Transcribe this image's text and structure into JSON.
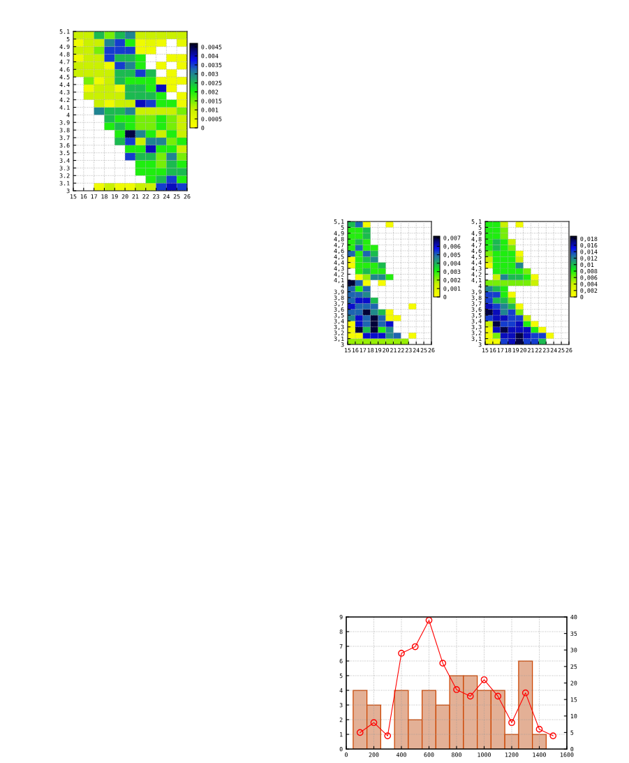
{
  "chart_data": [
    {
      "type": "heatmap",
      "xlim": [
        15,
        26
      ],
      "xticks": [
        15,
        16,
        17,
        18,
        19,
        20,
        21,
        22,
        23,
        24,
        25,
        26
      ],
      "ylim": [
        3,
        5.1
      ],
      "yticks": [
        3,
        3.1,
        3.2,
        3.3,
        3.4,
        3.5,
        3.6,
        3.7,
        3.8,
        3.9,
        4,
        4.1,
        4.2,
        4.3,
        4.4,
        4.5,
        4.6,
        4.7,
        4.8,
        4.9,
        5,
        5.1
      ],
      "grid": true,
      "clim": [
        0,
        0.0047
      ],
      "cticks": [
        0,
        0.0005,
        0.001,
        0.0015,
        0.002,
        0.0025,
        0.003,
        0.0035,
        0.004,
        0.0045
      ],
      "cells": [
        [
          0.001,
          0.001,
          0.0025,
          0.0015,
          0.0025,
          0.003,
          0.001,
          0.001,
          0.001,
          0.001,
          0.001
        ],
        [
          0.0003,
          0.001,
          0.001,
          0.003,
          0.0035,
          0.002,
          0.0003,
          0.0005,
          0.0003,
          null,
          0.0005
        ],
        [
          0.001,
          0.001,
          0.0015,
          0.0035,
          0.0035,
          0.0035,
          0.0003,
          0.0003,
          null,
          null,
          null
        ],
        [
          0.0003,
          0.001,
          0.001,
          0.0035,
          0.0025,
          0.0025,
          0.002,
          null,
          null,
          0.0003,
          0.0003
        ],
        [
          0.001,
          0.001,
          0.001,
          0.0003,
          0.0035,
          0.003,
          0.002,
          null,
          0.0003,
          null,
          0.0003
        ],
        [
          0.001,
          0.001,
          0.001,
          0.001,
          0.0025,
          0.0025,
          0.0035,
          0.0025,
          null,
          0.0003,
          null
        ],
        [
          null,
          0.0015,
          0.0003,
          0.001,
          0.0025,
          0.002,
          0.002,
          0.002,
          0.0003,
          0.0003,
          0.0003
        ],
        [
          null,
          0.0003,
          0.001,
          0.001,
          0.0003,
          0.0025,
          0.0025,
          0.002,
          0.004,
          0.0003,
          null
        ],
        [
          null,
          0.001,
          0.001,
          0.001,
          0.001,
          0.0025,
          0.0025,
          0.0025,
          0.002,
          null,
          0.0003
        ],
        [
          null,
          null,
          0.001,
          0.0003,
          0.001,
          0.001,
          0.004,
          0.0035,
          0.002,
          0.002,
          0.0003
        ],
        [
          null,
          null,
          0.003,
          0.0025,
          0.0025,
          0.003,
          0.001,
          0.001,
          0.001,
          0.001,
          0.0015
        ],
        [
          null,
          null,
          null,
          0.0025,
          0.002,
          0.002,
          0.0015,
          0.0015,
          0.002,
          0.0015,
          0.001
        ],
        [
          null,
          null,
          null,
          0.002,
          0.0025,
          0.002,
          0.0015,
          0.0015,
          0.002,
          0.0015,
          0.001
        ],
        [
          null,
          null,
          null,
          null,
          0.002,
          0.0045,
          0.003,
          0.002,
          0.001,
          0.002,
          0.001
        ],
        [
          null,
          null,
          null,
          null,
          0.0025,
          0.0035,
          0.001,
          0.003,
          0.003,
          0.0015,
          0.002
        ],
        [
          null,
          null,
          null,
          null,
          null,
          0.002,
          0.002,
          0.004,
          0.002,
          0.002,
          0.001
        ],
        [
          null,
          null,
          null,
          null,
          null,
          0.0035,
          0.0025,
          0.0025,
          0.0015,
          0.003,
          0.0015
        ],
        [
          null,
          null,
          null,
          null,
          null,
          null,
          0.002,
          0.002,
          0.0015,
          0.0025,
          0.002
        ],
        [
          null,
          null,
          null,
          null,
          null,
          null,
          0.002,
          0.002,
          0.002,
          0.0025,
          0.0025
        ],
        [
          null,
          null,
          null,
          null,
          null,
          null,
          null,
          0.002,
          0.0025,
          0.0035,
          0.002
        ],
        [
          null,
          null,
          0.0003,
          0.001,
          0.0003,
          0.0003,
          0.001,
          0.001,
          0.0035,
          0.004,
          0.0035
        ]
      ]
    },
    {
      "type": "heatmap",
      "xlim": [
        15,
        26
      ],
      "xticks": [
        15,
        16,
        17,
        18,
        19,
        20,
        21,
        22,
        23,
        24,
        25,
        26
      ],
      "ylim": [
        3,
        5.1
      ],
      "yticks": [
        3,
        {
          "value": 3.1,
          "label": "3,1"
        },
        {
          "value": 3.2,
          "label": "3,2"
        },
        {
          "value": 3.3,
          "label": "3,3"
        },
        {
          "value": 3.4,
          "label": "3,4"
        },
        {
          "value": 3.5,
          "label": "3,5"
        },
        {
          "value": 3.6,
          "label": "3,6"
        },
        {
          "value": 3.7,
          "label": "3,7"
        },
        {
          "value": 3.8,
          "label": "3,8"
        },
        {
          "value": 3.9,
          "label": "3,9"
        },
        4,
        {
          "value": 4.1,
          "label": "4,1"
        },
        {
          "value": 4.2,
          "label": "4,2"
        },
        {
          "value": 4.3,
          "label": "4,3"
        },
        {
          "value": 4.4,
          "label": "4,4"
        },
        {
          "value": 4.5,
          "label": "4,5"
        },
        {
          "value": 4.6,
          "label": "4,6"
        },
        {
          "value": 4.7,
          "label": "4,7"
        },
        {
          "value": 4.8,
          "label": "4,8"
        },
        {
          "value": 4.9,
          "label": "4,9"
        },
        5,
        {
          "value": 5.1,
          "label": "5,1"
        }
      ],
      "grid": true,
      "clim": [
        0,
        0.0072
      ],
      "cticks": [
        0,
        {
          "value": 0.001,
          "label": "0,001"
        },
        {
          "value": 0.002,
          "label": "0,002"
        },
        {
          "value": 0.003,
          "label": "0,003"
        },
        {
          "value": 0.004,
          "label": "0,004"
        },
        {
          "value": 0.005,
          "label": "0,005"
        },
        {
          "value": 0.006,
          "label": "0,006"
        },
        {
          "value": 0.007,
          "label": "0,007"
        }
      ],
      "cells": [
        [
          0.0038,
          0.005,
          0.0003,
          null,
          null,
          0.0003,
          null,
          null,
          null,
          null,
          null
        ],
        [
          0.003,
          0.003,
          0.0038,
          null,
          null,
          null,
          null,
          null,
          null,
          null,
          null
        ],
        [
          0.003,
          0.003,
          0.0038,
          null,
          null,
          null,
          null,
          null,
          null,
          null,
          null
        ],
        [
          0.003,
          0.0038,
          0.003,
          null,
          null,
          null,
          null,
          null,
          null,
          null,
          null
        ],
        [
          0.003,
          0.005,
          0.003,
          0.003,
          null,
          null,
          null,
          null,
          null,
          null,
          null
        ],
        [
          0.005,
          0.003,
          0.005,
          0.0038,
          null,
          null,
          null,
          null,
          null,
          null,
          null
        ],
        [
          0.0003,
          0.003,
          0.0038,
          0.0045,
          null,
          null,
          null,
          null,
          null,
          null,
          null
        ],
        [
          0.0003,
          0.003,
          0.003,
          0.003,
          0.0038,
          null,
          null,
          null,
          null,
          null,
          null
        ],
        [
          null,
          0.003,
          0.0038,
          0.003,
          0.003,
          null,
          null,
          null,
          null,
          null,
          null
        ],
        [
          null,
          0.0003,
          0.002,
          0.0045,
          0.0045,
          0.003,
          null,
          null,
          null,
          null,
          null
        ],
        [
          0.007,
          0.005,
          0.0003,
          null,
          0.0003,
          null,
          null,
          null,
          null,
          null,
          null
        ],
        [
          0.005,
          0.003,
          0.005,
          null,
          null,
          null,
          null,
          null,
          null,
          null,
          null
        ],
        [
          0.005,
          0.005,
          0.0045,
          null,
          null,
          null,
          null,
          null,
          null,
          null,
          null
        ],
        [
          0.005,
          0.006,
          0.006,
          0.0038,
          null,
          null,
          null,
          null,
          null,
          null,
          null
        ],
        [
          0.006,
          0.005,
          0.005,
          0.005,
          null,
          null,
          null,
          null,
          0.0003,
          null,
          null
        ],
        [
          0.005,
          0.005,
          0.007,
          0.0045,
          0.0038,
          0.0003,
          null,
          null,
          null,
          null,
          null
        ],
        [
          0.0045,
          0.006,
          0.005,
          0.007,
          0.005,
          0.0003,
          0.0003,
          null,
          null,
          null,
          null
        ],
        [
          0.0003,
          0.006,
          0.005,
          0.007,
          0.005,
          0.006,
          null,
          null,
          null,
          null,
          null
        ],
        [
          0.0003,
          0.007,
          0.0038,
          0.007,
          0.003,
          0.0045,
          null,
          null,
          null,
          null,
          null
        ],
        [
          0.0003,
          0.0003,
          0.006,
          0.006,
          0.006,
          0.0045,
          0.005,
          null,
          0.0003,
          null,
          null
        ],
        [
          0.002,
          0.002,
          0.002,
          0.002,
          0.002,
          0.002,
          0.002,
          0.002,
          null,
          null,
          null
        ]
      ]
    },
    {
      "type": "heatmap",
      "xlim": [
        15,
        26
      ],
      "xticks": [
        15,
        16,
        17,
        18,
        19,
        20,
        21,
        22,
        23,
        24,
        25,
        26
      ],
      "ylim": [
        3,
        5.1
      ],
      "yticks": [
        3,
        {
          "value": 3.1,
          "label": "3,1"
        },
        {
          "value": 3.2,
          "label": "3,2"
        },
        {
          "value": 3.3,
          "label": "3,3"
        },
        {
          "value": 3.4,
          "label": "3,4"
        },
        {
          "value": 3.5,
          "label": "3,5"
        },
        {
          "value": 3.6,
          "label": "3,6"
        },
        {
          "value": 3.7,
          "label": "3,7"
        },
        {
          "value": 3.8,
          "label": "3,8"
        },
        {
          "value": 3.9,
          "label": "3,9"
        },
        4,
        {
          "value": 4.1,
          "label": "4,1"
        },
        {
          "value": 4.2,
          "label": "4,2"
        },
        {
          "value": 4.3,
          "label": "4,3"
        },
        {
          "value": 4.4,
          "label": "4,4"
        },
        {
          "value": 4.5,
          "label": "4,5"
        },
        {
          "value": 4.6,
          "label": "4,6"
        },
        {
          "value": 4.7,
          "label": "4,7"
        },
        {
          "value": 4.8,
          "label": "4,8"
        },
        {
          "value": 4.9,
          "label": "4,9"
        },
        5,
        {
          "value": 5.1,
          "label": "5,1"
        }
      ],
      "grid": true,
      "clim": [
        0,
        0.0188
      ],
      "cticks": [
        0,
        {
          "value": 0.002,
          "label": "0,002"
        },
        {
          "value": 0.004,
          "label": "0,004"
        },
        {
          "value": 0.006,
          "label": "0,006"
        },
        {
          "value": 0.008,
          "label": "0,008"
        },
        {
          "value": 0.01,
          "label": "0,01"
        },
        {
          "value": 0.012,
          "label": "0,012"
        },
        {
          "value": 0.014,
          "label": "0,014"
        },
        {
          "value": 0.016,
          "label": "0,016"
        },
        {
          "value": 0.018,
          "label": "0,018"
        }
      ],
      "cells": [
        [
          0.008,
          0.008,
          0.004,
          null,
          0.001,
          null,
          null,
          null,
          null,
          null,
          null
        ],
        [
          0.008,
          0.008,
          0.006,
          null,
          null,
          null,
          null,
          null,
          null,
          null,
          null
        ],
        [
          0.008,
          0.008,
          0.006,
          null,
          null,
          null,
          null,
          null,
          null,
          null,
          null
        ],
        [
          0.008,
          0.01,
          0.008,
          0.004,
          null,
          null,
          null,
          null,
          null,
          null,
          null
        ],
        [
          0.008,
          0.01,
          0.008,
          0.006,
          null,
          null,
          null,
          null,
          null,
          null,
          null
        ],
        [
          0.006,
          0.008,
          0.008,
          0.008,
          0.001,
          null,
          null,
          null,
          null,
          null,
          null
        ],
        [
          0.004,
          0.008,
          0.008,
          0.008,
          0.004,
          null,
          null,
          null,
          null,
          null,
          null
        ],
        [
          0.001,
          0.008,
          0.008,
          0.008,
          0.012,
          null,
          null,
          null,
          null,
          null,
          null
        ],
        [
          null,
          0.008,
          0.008,
          0.008,
          0.008,
          0.006,
          null,
          null,
          null,
          null,
          null
        ],
        [
          null,
          0.004,
          0.012,
          0.01,
          0.01,
          0.008,
          0.001,
          null,
          null,
          null,
          null
        ],
        [
          0.006,
          0.006,
          0.006,
          0.006,
          0.006,
          0.006,
          0.004,
          null,
          null,
          null,
          null
        ],
        [
          0.012,
          0.01,
          0.008,
          null,
          null,
          null,
          null,
          null,
          null,
          null,
          null
        ],
        [
          0.014,
          0.014,
          0.008,
          0.001,
          null,
          null,
          null,
          null,
          null,
          null,
          null
        ],
        [
          0.014,
          0.01,
          0.01,
          0.006,
          null,
          null,
          null,
          null,
          null,
          null,
          null
        ],
        [
          0.016,
          0.014,
          0.012,
          0.01,
          0.001,
          null,
          null,
          null,
          null,
          null,
          null
        ],
        [
          0.018,
          0.016,
          0.012,
          0.014,
          0.006,
          null,
          null,
          null,
          null,
          null,
          null
        ],
        [
          0.014,
          0.016,
          0.016,
          0.014,
          0.014,
          0.004,
          null,
          null,
          null,
          null,
          null
        ],
        [
          0.004,
          0.018,
          0.014,
          0.014,
          0.016,
          0.008,
          0.001,
          null,
          null,
          null,
          null
        ],
        [
          0.001,
          0.016,
          0.018,
          0.016,
          0.016,
          0.016,
          0.008,
          0.001,
          null,
          null,
          null
        ],
        [
          0.001,
          0.006,
          0.016,
          0.016,
          0.018,
          0.016,
          0.014,
          0.014,
          0.001,
          null,
          null
        ],
        [
          0.001,
          0.001,
          0.014,
          0.016,
          0.018,
          0.014,
          0.014,
          0.01,
          null,
          null,
          null
        ]
      ]
    },
    {
      "type": "histogram",
      "bins": [
        50,
        150,
        250,
        350,
        450,
        550,
        650,
        750,
        850,
        950,
        1050,
        1150,
        1250,
        1350,
        1450
      ],
      "values": [
        4,
        3,
        0,
        4,
        2,
        4,
        3,
        5,
        5,
        4,
        4,
        1,
        6,
        1
      ],
      "color": "#e3b096",
      "xlim": [
        0,
        1600
      ],
      "xticks": [
        0,
        200,
        400,
        600,
        800,
        1000,
        1200,
        1400,
        1600
      ],
      "ylim": [
        0,
        9
      ],
      "yticks": [
        0,
        1,
        2,
        3,
        4,
        5,
        6,
        7,
        8,
        9
      ],
      "y2lim": [
        0,
        40
      ],
      "y2ticks": [
        0,
        5,
        10,
        15,
        20,
        25,
        30,
        35,
        40
      ],
      "grid": true,
      "series": [
        {
          "type": "line",
          "axis": "y2",
          "color": "#ff0000",
          "marker": "circle",
          "line_style": "solid",
          "x": [
            100,
            200,
            300,
            400,
            500,
            600,
            700,
            800,
            900,
            1000,
            1100,
            1200,
            1300,
            1400,
            1500
          ],
          "values": [
            5,
            8,
            4,
            29,
            31,
            39,
            26,
            18,
            16,
            21,
            16,
            8,
            17,
            6,
            4
          ]
        }
      ]
    }
  ]
}
